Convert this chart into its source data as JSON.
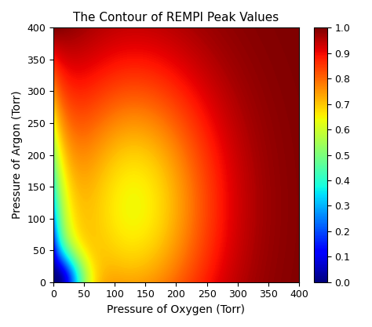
{
  "title": "The Contour of REMPI Peak Values",
  "xlabel": "Pressure of Oxygen (Torr)",
  "ylabel": "Pressure of Argon (Torr)",
  "xlim": [
    0,
    400
  ],
  "ylim": [
    0,
    400
  ],
  "xticks": [
    0,
    50,
    100,
    150,
    200,
    250,
    300,
    350,
    400
  ],
  "yticks": [
    0,
    50,
    100,
    150,
    200,
    250,
    300,
    350,
    400
  ],
  "colorbar_ticks": [
    0.0,
    0.1,
    0.2,
    0.3,
    0.4,
    0.5,
    0.6,
    0.7,
    0.8,
    0.9,
    1.0
  ],
  "cmap": "jet",
  "vmin": 0.0,
  "vmax": 1.0,
  "grid_points": 300,
  "p_o2_max": 400,
  "p_ar_max": 400
}
